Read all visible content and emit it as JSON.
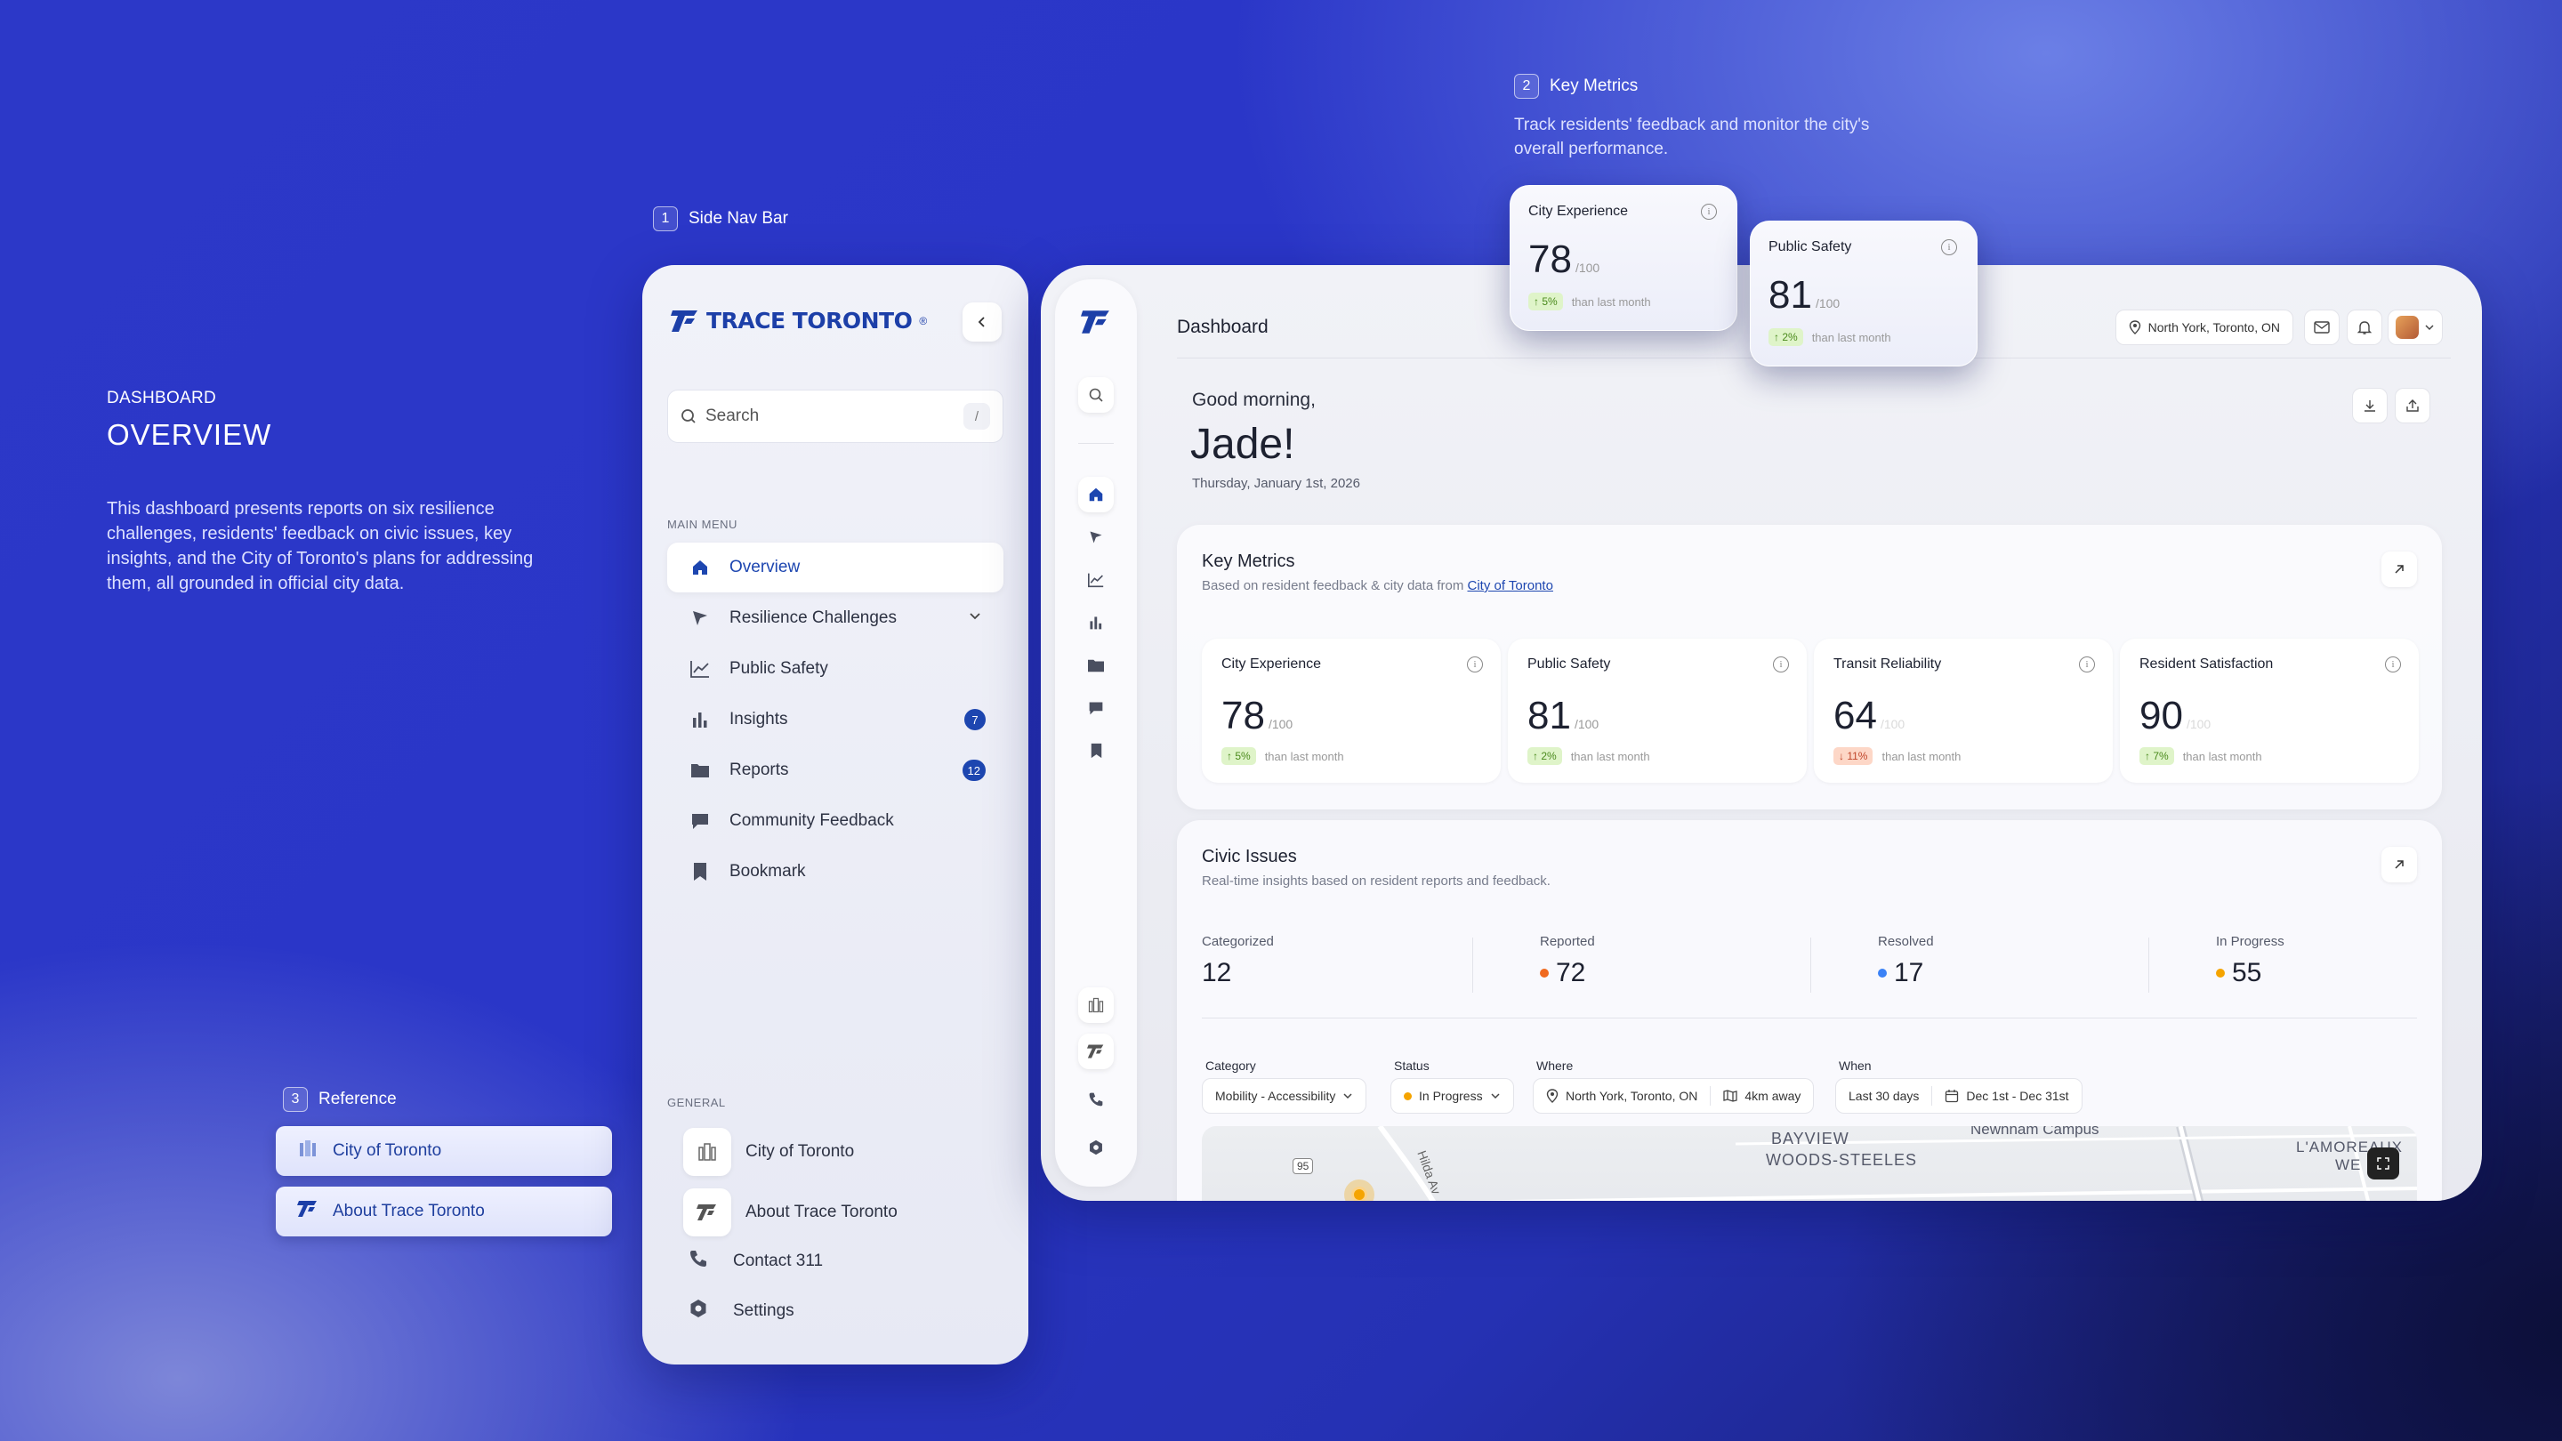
{
  "intro": {
    "kicker": "DASHBOARD",
    "title": "OVERVIEW",
    "description": "This dashboard presents reports on six resilience challenges, residents' feedback on civic issues, key insights, and the City of Toronto's plans for addressing them, all grounded in official city data."
  },
  "annotations": {
    "side_nav": {
      "num": "1",
      "label": "Side Nav Bar"
    },
    "key_metrics": {
      "num": "2",
      "label": "Key Metrics",
      "desc": "Track residents' feedback and monitor the city's overall performance."
    },
    "reference": {
      "num": "3",
      "label": "Reference"
    }
  },
  "reference_buttons": [
    "City of Toronto",
    "About Trace Toronto"
  ],
  "sidenav": {
    "logo": "TRACE TORONTO",
    "logo_mark": "®",
    "collapse_icon": "chevron-left-icon",
    "search_placeholder": "Search",
    "search_shortcut": "/",
    "main_menu_label": "MAIN MENU",
    "items": [
      {
        "label": "Overview",
        "icon": "home-icon",
        "active": true
      },
      {
        "label": "Resilience Challenges",
        "icon": "navigation-arrow-icon",
        "has_chevron": true
      },
      {
        "label": "Public Safety",
        "icon": "line-chart-icon"
      },
      {
        "label": "Insights",
        "icon": "bar-chart-icon",
        "badge": "7"
      },
      {
        "label": "Reports",
        "icon": "folder-icon",
        "badge": "12"
      },
      {
        "label": "Community Feedback",
        "icon": "chat-icon"
      },
      {
        "label": "Bookmark",
        "icon": "bookmark-icon"
      }
    ],
    "general_label": "GENERAL",
    "general": [
      {
        "label": "City of Toronto",
        "icon": "city-hall-icon"
      },
      {
        "label": "About Trace Toronto",
        "icon": "trace-logo-icon"
      },
      {
        "label": "Contact 311",
        "icon": "phone-icon"
      },
      {
        "label": "Settings",
        "icon": "gear-icon"
      }
    ]
  },
  "header": {
    "title": "Dashboard",
    "location": "North York, Toronto, ON"
  },
  "greeting": {
    "line": "Good morning,",
    "name": "Jade!",
    "date": "Thursday, January 1st, 2026"
  },
  "key_metrics": {
    "title": "Key Metrics",
    "subtitle_prefix": "Based on resident feedback & city data from ",
    "subtitle_link": "City of Toronto",
    "cards": [
      {
        "label": "City Experience",
        "value": "78",
        "of": "/100",
        "change": "5%",
        "direction": "up",
        "note": "than last month"
      },
      {
        "label": "Public Safety",
        "value": "81",
        "of": "/100",
        "change": "2%",
        "direction": "up",
        "note": "than last month"
      },
      {
        "label": "Transit Reliability",
        "value": "64",
        "of": "/100",
        "change": "11%",
        "direction": "down",
        "note": "than last month"
      },
      {
        "label": "Resident Satisfaction",
        "value": "90",
        "of": "/100",
        "change": "7%",
        "direction": "up",
        "note": "than last month"
      }
    ]
  },
  "civic_issues": {
    "title": "Civic Issues",
    "subtitle": "Real-time insights based on resident reports and feedback.",
    "stats": [
      {
        "label": "Categorized",
        "value": "12",
        "color": ""
      },
      {
        "label": "Reported",
        "value": "72",
        "color": "#f06a1f"
      },
      {
        "label": "Resolved",
        "value": "17",
        "color": "#3b82f6"
      },
      {
        "label": "In Progress",
        "value": "55",
        "color": "#f5a400"
      }
    ],
    "filters": {
      "category_label": "Category",
      "category_value": "Mobility - Accessibility",
      "status_label": "Status",
      "status_value": "In Progress",
      "where_label": "Where",
      "where_value": "North York, Toronto, ON",
      "distance": "4km away",
      "when_label": "When",
      "when_value": "Last 30 days",
      "date_range": "Dec 1st - Dec 31st"
    },
    "map": {
      "label_1": "BAYVIEW",
      "label_2": "WOODS-STEELES",
      "label_3": "L'AMOREAUX",
      "label_4": "WE",
      "label_5": "Newnham Campus",
      "road": "95",
      "street": "Hilda Av"
    }
  },
  "floating_cards": [
    {
      "label": "City Experience",
      "value": "78",
      "of": "/100",
      "change": "5%",
      "note": "than last month"
    },
    {
      "label": "Public Safety",
      "value": "81",
      "of": "/100",
      "change": "2%",
      "note": "than last month"
    }
  ],
  "colors": {
    "brand": "#1d46b0",
    "up": "#4a8a1c",
    "down": "#c0452a"
  }
}
